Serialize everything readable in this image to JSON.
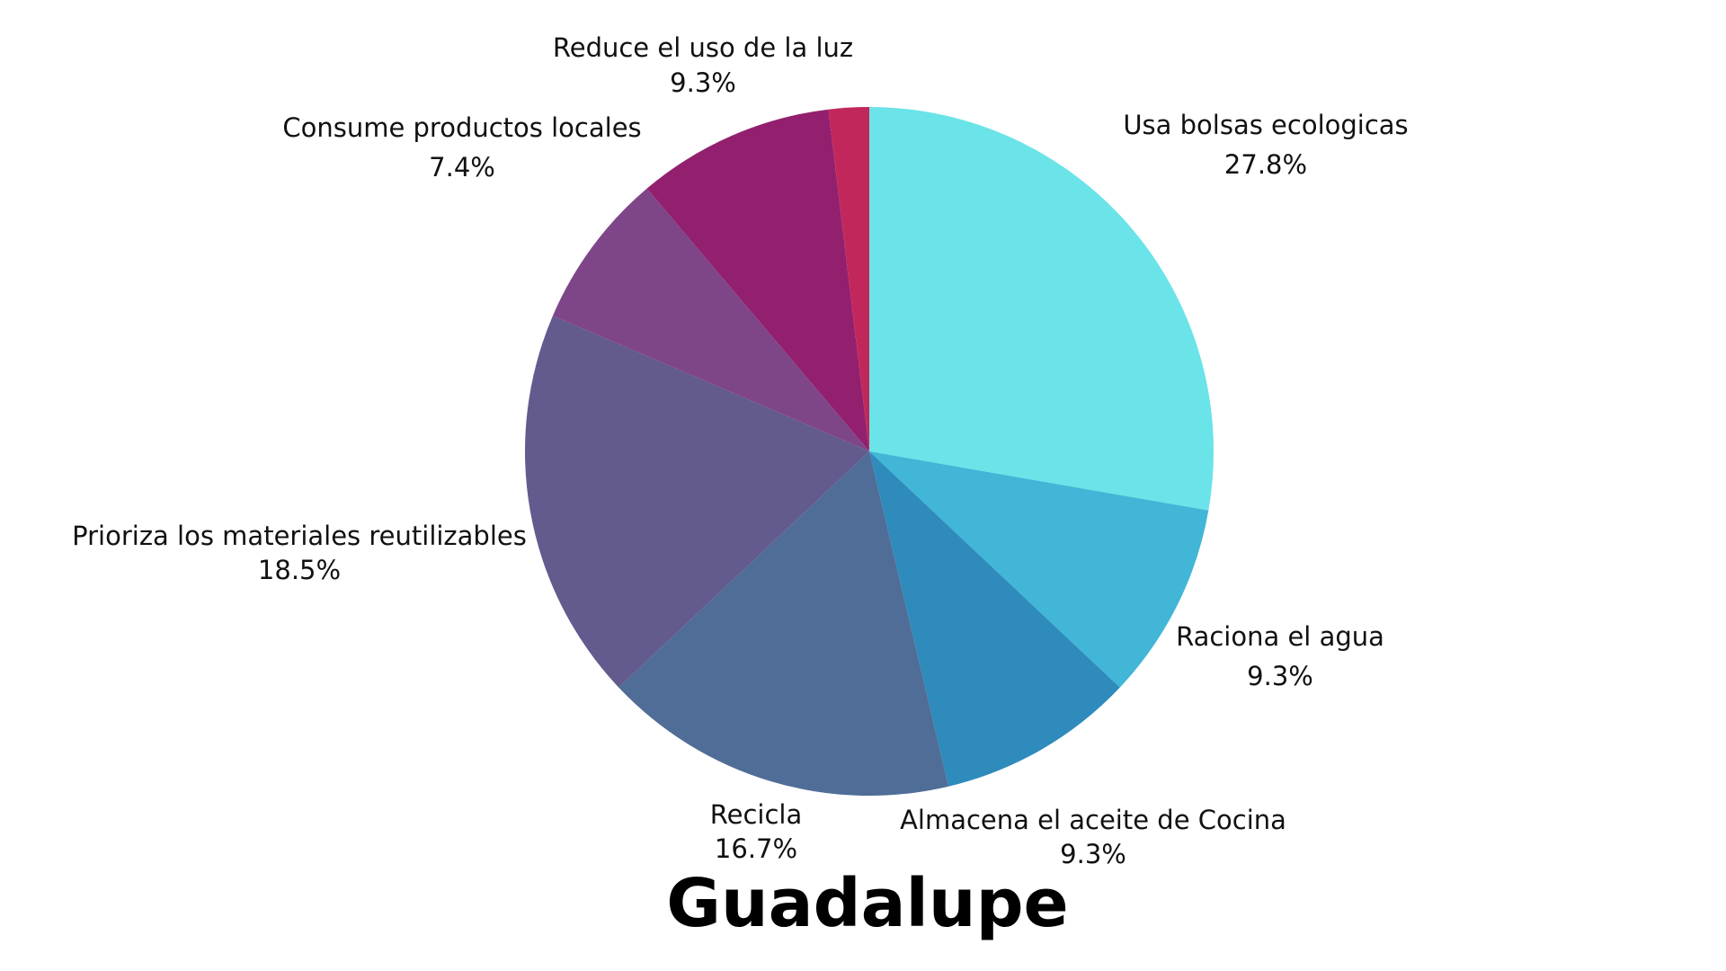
{
  "chart_data": {
    "type": "pie",
    "title": "Guadalupe",
    "start_angle_deg": 0,
    "direction": "clockwise",
    "slices": [
      {
        "label": "Usa bolsas ecologicas",
        "value": 27.8,
        "display": "27.8%",
        "color": "#6ae4e8"
      },
      {
        "label": "Raciona el agua",
        "value": 9.3,
        "display": "9.3%",
        "color": "#41b6d7"
      },
      {
        "label": "Almacena el aceite de Cocina",
        "value": 9.3,
        "display": "9.3%",
        "color": "#2e8bbb"
      },
      {
        "label": "Recicla",
        "value": 16.7,
        "display": "16.7%",
        "color": "#4f6d97"
      },
      {
        "label": "Prioriza los materiales reutilizables",
        "value": 18.5,
        "display": "18.5%",
        "color": "#635a8e"
      },
      {
        "label": "Consume productos locales",
        "value": 7.4,
        "display": "7.4%",
        "color": "#7e4689"
      },
      {
        "label": "Reduce el uso de la luz",
        "value": 9.3,
        "display": "9.3%",
        "color": "#92206e"
      },
      {
        "label": "",
        "value": 1.9,
        "display": "",
        "color": "#c2275b"
      }
    ]
  }
}
